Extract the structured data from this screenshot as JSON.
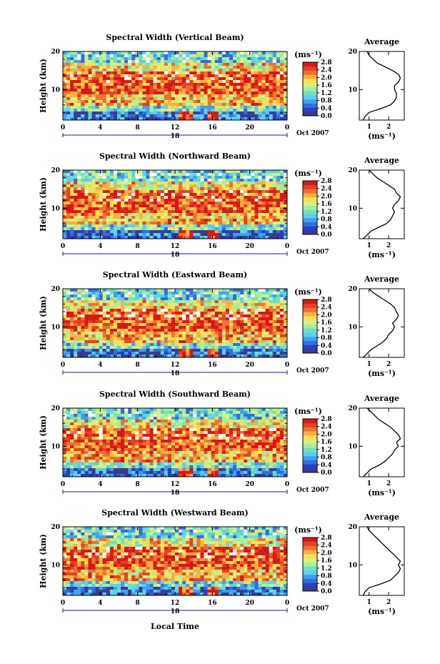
{
  "figure": {
    "xlabel": "Local Time",
    "date_label": "Oct 2007",
    "day_label": "18",
    "average_title": "Average",
    "unit_label": "(ms⁻¹)",
    "ylabel": "Height (km)"
  },
  "colors": {
    "colormap": [
      "#3b3b8f",
      "#2b3fc7",
      "#2f6fe0",
      "#3fa0f0",
      "#5ad0f0",
      "#70e0c0",
      "#a0f0a0",
      "#d8f080",
      "#f8e050",
      "#f8b040",
      "#f07030",
      "#e84020",
      "#d81818"
    ],
    "background": "#ffffff"
  },
  "chart_data": [
    {
      "type": "heatmap",
      "title": "Spectral Width (Vertical Beam)",
      "x_ticks": [
        "0",
        "4",
        "8",
        "12",
        "16",
        "20",
        "0"
      ],
      "xlim": [
        0,
        24
      ],
      "y_ticks": [
        "10",
        "20"
      ],
      "ylim": [
        2,
        20
      ],
      "colorbar_ticks": [
        "2.8",
        "2.4",
        "2.0",
        "1.6",
        "1.2",
        "0.8",
        "0.4",
        "0.0"
      ],
      "colorbar_range": [
        0,
        2.8
      ],
      "average_profile": {
        "x_ticks": [
          "1",
          "2"
        ],
        "xlim": [
          0.5,
          2.8
        ],
        "height": [
          2,
          3,
          4,
          5,
          6,
          7,
          8,
          9,
          10,
          11,
          12,
          13,
          14,
          15,
          16,
          17,
          18,
          19,
          20
        ],
        "value": [
          0.7,
          0.8,
          1.0,
          1.6,
          2.1,
          2.3,
          2.4,
          2.4,
          2.3,
          2.3,
          2.5,
          2.6,
          2.5,
          2.2,
          1.8,
          1.4,
          1.2,
          1.0,
          0.9
        ]
      }
    },
    {
      "type": "heatmap",
      "title": "Spectral Width (Northward Beam)",
      "x_ticks": [
        "0",
        "4",
        "8",
        "12",
        "16",
        "20",
        "0"
      ],
      "xlim": [
        0,
        24
      ],
      "y_ticks": [
        "10",
        "20"
      ],
      "ylim": [
        2,
        20
      ],
      "colorbar_ticks": [
        "2.8",
        "2.4",
        "2.0",
        "1.6",
        "1.2",
        "0.8",
        "0.4",
        "0.0"
      ],
      "colorbar_range": [
        0,
        2.8
      ],
      "average_profile": {
        "x_ticks": [
          "1",
          "2"
        ],
        "xlim": [
          0.5,
          2.8
        ],
        "height": [
          2,
          3,
          4,
          5,
          6,
          7,
          8,
          9,
          10,
          11,
          12,
          13,
          14,
          15,
          16,
          17,
          18,
          19,
          20
        ],
        "value": [
          0.7,
          0.9,
          1.1,
          1.5,
          1.9,
          2.1,
          2.2,
          2.3,
          2.2,
          2.3,
          2.5,
          2.6,
          2.4,
          2.3,
          2.0,
          1.7,
          1.4,
          1.2,
          1.0
        ]
      }
    },
    {
      "type": "heatmap",
      "title": "Spectral Width (Eastward Beam)",
      "x_ticks": [
        "0",
        "4",
        "8",
        "12",
        "16",
        "20",
        "0"
      ],
      "xlim": [
        0,
        24
      ],
      "y_ticks": [
        "10",
        "20"
      ],
      "ylim": [
        2,
        20
      ],
      "colorbar_ticks": [
        "2.8",
        "2.4",
        "2.0",
        "1.6",
        "1.2",
        "0.8",
        "0.4",
        "0.0"
      ],
      "colorbar_range": [
        0,
        2.8
      ],
      "average_profile": {
        "x_ticks": [
          "1",
          "2"
        ],
        "xlim": [
          0.5,
          2.8
        ],
        "height": [
          2,
          3,
          4,
          5,
          6,
          7,
          8,
          9,
          10,
          11,
          12,
          13,
          14,
          15,
          16,
          17,
          18,
          19,
          20
        ],
        "value": [
          0.7,
          0.9,
          1.1,
          1.4,
          1.7,
          1.9,
          2.0,
          2.2,
          2.3,
          2.2,
          2.4,
          2.5,
          2.4,
          2.3,
          2.1,
          1.8,
          1.5,
          1.2,
          1.0
        ]
      }
    },
    {
      "type": "heatmap",
      "title": "Spectral Width (Southward Beam)",
      "x_ticks": [
        "0",
        "4",
        "8",
        "12",
        "16",
        "20",
        "0"
      ],
      "xlim": [
        0,
        24
      ],
      "y_ticks": [
        "10",
        "20"
      ],
      "ylim": [
        2,
        20
      ],
      "colorbar_ticks": [
        "2.8",
        "2.4",
        "2.0",
        "1.6",
        "1.2",
        "0.8",
        "0.4",
        "0.0"
      ],
      "colorbar_range": [
        0,
        2.8
      ],
      "average_profile": {
        "x_ticks": [
          "1",
          "2"
        ],
        "xlim": [
          0.5,
          2.8
        ],
        "height": [
          2,
          3,
          4,
          5,
          6,
          7,
          8,
          9,
          10,
          11,
          12,
          13,
          14,
          15,
          16,
          17,
          18,
          19,
          20
        ],
        "value": [
          0.7,
          0.9,
          1.1,
          1.5,
          1.8,
          2.0,
          2.2,
          2.3,
          2.5,
          2.4,
          2.6,
          2.5,
          2.3,
          2.1,
          1.8,
          1.5,
          1.3,
          1.1,
          0.9
        ]
      }
    },
    {
      "type": "heatmap",
      "title": "Spectral Width (Westward Beam)",
      "x_ticks": [
        "0",
        "4",
        "8",
        "12",
        "16",
        "20",
        "0"
      ],
      "xlim": [
        0,
        24
      ],
      "y_ticks": [
        "10",
        "20"
      ],
      "ylim": [
        2,
        20
      ],
      "colorbar_ticks": [
        "2.8",
        "2.4",
        "2.0",
        "1.6",
        "1.2",
        "0.8",
        "0.4",
        "0.0"
      ],
      "colorbar_range": [
        0,
        2.8
      ],
      "average_profile": {
        "x_ticks": [
          "1",
          "2"
        ],
        "xlim": [
          0.5,
          2.8
        ],
        "height": [
          2,
          3,
          4,
          5,
          6,
          7,
          8,
          9,
          10,
          11,
          12,
          13,
          14,
          15,
          16,
          17,
          18,
          19,
          20
        ],
        "value": [
          0.7,
          0.8,
          1.0,
          1.6,
          2.1,
          2.3,
          2.5,
          2.6,
          2.5,
          2.6,
          2.4,
          2.2,
          2.0,
          1.8,
          1.6,
          1.4,
          1.2,
          1.0,
          0.9
        ]
      }
    }
  ]
}
